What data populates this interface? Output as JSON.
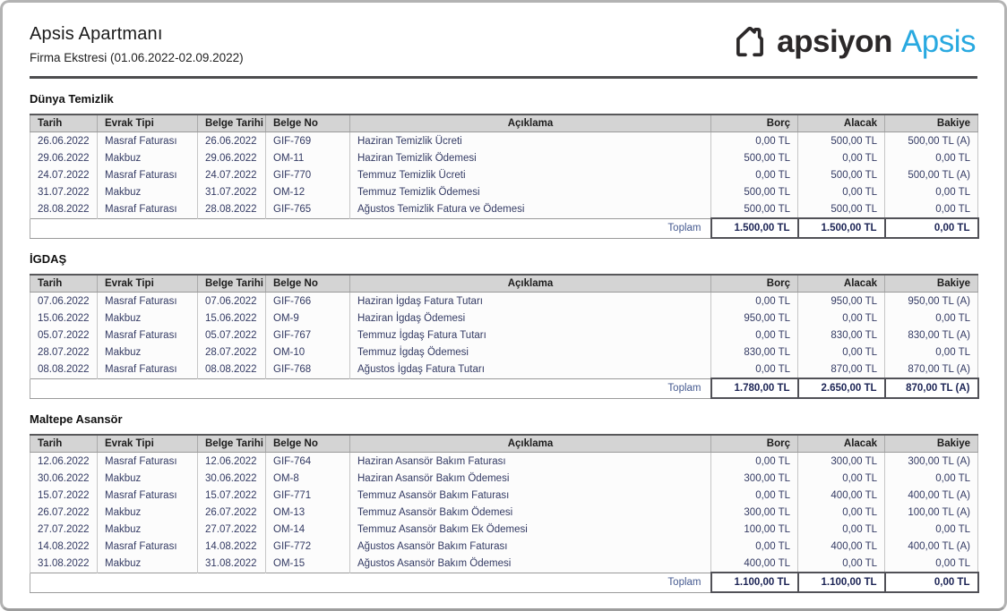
{
  "header": {
    "title": "Apsis Apartmanı",
    "subtitle": "Firma Ekstresi (01.06.2022-02.09.2022)",
    "logo": {
      "icon": "house-icon",
      "brand": "apsiyon",
      "product": "Apsis",
      "brand_color": "#2b2829",
      "product_color": "#29a9e0"
    }
  },
  "colors": {
    "table_header_bg": "#d4d4d4",
    "body_text_navy": "#333a63",
    "toplam_label_blue": "#44598f",
    "totals_navy": "#1c2455",
    "divider_gray": "#4d4d4f"
  },
  "table_headers": [
    "Tarih",
    "Evrak Tipi",
    "Belge Tarihi",
    "Belge No",
    "Açıklama",
    "Borç",
    "Alacak",
    "Bakiye"
  ],
  "toplam_label": "Toplam",
  "sections": [
    {
      "title": "Dünya Temizlik",
      "rows": [
        [
          "26.06.2022",
          "Masraf Faturası",
          "26.06.2022",
          "GIF-769",
          "Haziran Temizlik Ücreti",
          "0,00 TL",
          "500,00 TL",
          "500,00 TL (A)"
        ],
        [
          "29.06.2022",
          "Makbuz",
          "29.06.2022",
          "OM-11",
          "Haziran Temizlik Ödemesi",
          "500,00 TL",
          "0,00 TL",
          "0,00 TL"
        ],
        [
          "24.07.2022",
          "Masraf Faturası",
          "24.07.2022",
          "GIF-770",
          "Temmuz Temizlik Ücreti",
          "0,00 TL",
          "500,00 TL",
          "500,00 TL (A)"
        ],
        [
          "31.07.2022",
          "Makbuz",
          "31.07.2022",
          "OM-12",
          "Temmuz Temizlik Ödemesi",
          "500,00 TL",
          "0,00 TL",
          "0,00 TL"
        ],
        [
          "28.08.2022",
          "Masraf Faturası",
          "28.08.2022",
          "GIF-765",
          "Ağustos Temizlik Fatura ve Ödemesi",
          "500,00 TL",
          "500,00 TL",
          "0,00 TL"
        ]
      ],
      "totals": [
        "1.500,00 TL",
        "1.500,00 TL",
        "0,00 TL"
      ]
    },
    {
      "title": "İGDAŞ",
      "rows": [
        [
          "07.06.2022",
          "Masraf Faturası",
          "07.06.2022",
          "GIF-766",
          "Haziran İgdaş Fatura Tutarı",
          "0,00 TL",
          "950,00 TL",
          "950,00 TL (A)"
        ],
        [
          "15.06.2022",
          "Makbuz",
          "15.06.2022",
          "OM-9",
          "Haziran İgdaş Ödemesi",
          "950,00 TL",
          "0,00 TL",
          "0,00 TL"
        ],
        [
          "05.07.2022",
          "Masraf Faturası",
          "05.07.2022",
          "GIF-767",
          "Temmuz İgdaş Fatura Tutarı",
          "0,00 TL",
          "830,00 TL",
          "830,00 TL (A)"
        ],
        [
          "28.07.2022",
          "Makbuz",
          "28.07.2022",
          "OM-10",
          "Temmuz İgdaş Ödemesi",
          "830,00 TL",
          "0,00 TL",
          "0,00 TL"
        ],
        [
          "08.08.2022",
          "Masraf Faturası",
          "08.08.2022",
          "GIF-768",
          "Ağustos İgdaş Fatura Tutarı",
          "0,00 TL",
          "870,00 TL",
          "870,00 TL (A)"
        ]
      ],
      "totals": [
        "1.780,00 TL",
        "2.650,00 TL",
        "870,00 TL (A)"
      ]
    },
    {
      "title": "Maltepe Asansör",
      "rows": [
        [
          "12.06.2022",
          "Masraf Faturası",
          "12.06.2022",
          "GIF-764",
          "Haziran Asansör Bakım Faturası",
          "0,00 TL",
          "300,00 TL",
          "300,00 TL (A)"
        ],
        [
          "30.06.2022",
          "Makbuz",
          "30.06.2022",
          "OM-8",
          "Haziran Asansör Bakım Ödemesi",
          "300,00 TL",
          "0,00 TL",
          "0,00 TL"
        ],
        [
          "15.07.2022",
          "Masraf Faturası",
          "15.07.2022",
          "GIF-771",
          "Temmuz Asansör Bakım Faturası",
          "0,00 TL",
          "400,00 TL",
          "400,00 TL (A)"
        ],
        [
          "26.07.2022",
          "Makbuz",
          "26.07.2022",
          "OM-13",
          "Temmuz Asansör Bakım Ödemesi",
          "300,00 TL",
          "0,00 TL",
          "100,00 TL (A)"
        ],
        [
          "27.07.2022",
          "Makbuz",
          "27.07.2022",
          "OM-14",
          "Temmuz Asansör Bakım Ek Ödemesi",
          "100,00 TL",
          "0,00 TL",
          "0,00 TL"
        ],
        [
          "14.08.2022",
          "Masraf Faturası",
          "14.08.2022",
          "GIF-772",
          "Ağustos Asansör Bakım Faturası",
          "0,00 TL",
          "400,00 TL",
          "400,00 TL (A)"
        ],
        [
          "31.08.2022",
          "Makbuz",
          "31.08.2022",
          "OM-15",
          "Ağustos Asansör Bakım Ödemesi",
          "400,00 TL",
          "0,00 TL",
          "0,00 TL"
        ]
      ],
      "totals": [
        "1.100,00 TL",
        "1.100,00 TL",
        "0,00 TL"
      ]
    }
  ]
}
